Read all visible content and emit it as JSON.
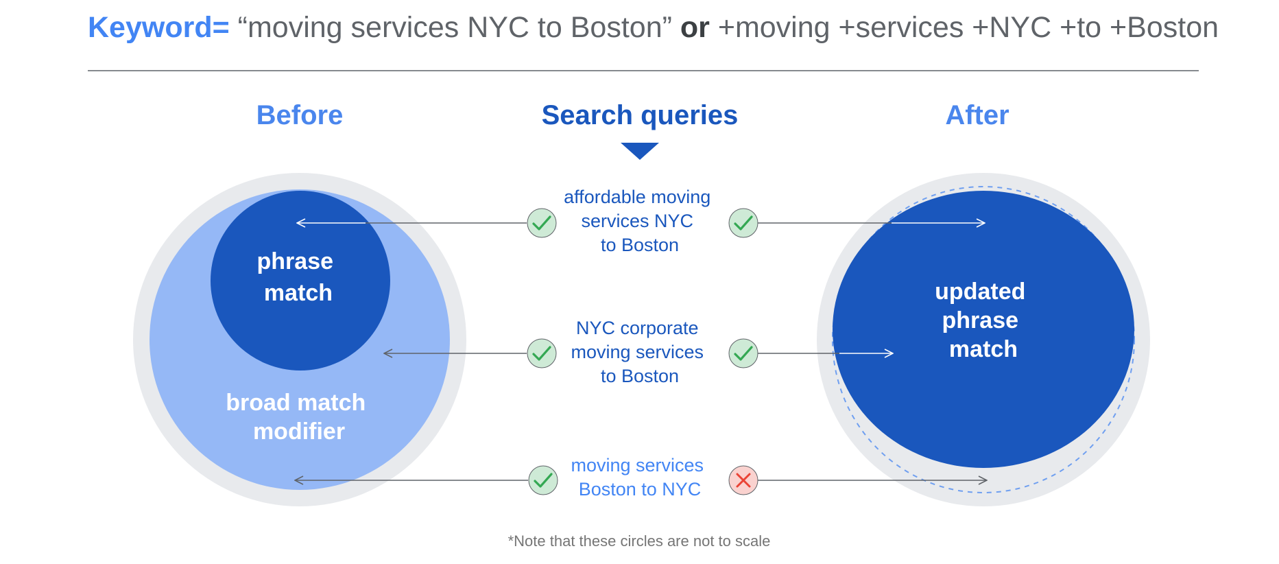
{
  "header": {
    "keyword_label": "Keyword=",
    "keyword_phrase": " “moving services NYC to Boston” ",
    "or_word": "or",
    "modifier_phrase": " +moving +services +NYC +to +Boston"
  },
  "sections": {
    "before": "Before",
    "middle": "Search queries",
    "after": "After"
  },
  "before_diagram": {
    "outer_label": [
      "broad match",
      "modifier"
    ],
    "inner_label": [
      "phrase",
      "match"
    ]
  },
  "after_diagram": {
    "label": [
      "updated",
      "phrase",
      "match"
    ]
  },
  "queries": [
    {
      "lines": [
        "affordable moving",
        "services NYC",
        "to Boston"
      ],
      "before": "match",
      "after": "match",
      "text_color": "#1a57bd"
    },
    {
      "lines": [
        "NYC corporate",
        "moving services",
        "to Boston"
      ],
      "before": "match",
      "after": "match",
      "text_color": "#1a57bd"
    },
    {
      "lines": [
        "moving services",
        "Boston to NYC"
      ],
      "before": "match",
      "after": "no-match",
      "text_color": "#4285f4"
    }
  ],
  "footnote": "*Note that these circles are not to scale",
  "colors": {
    "keyword_blue": "#4285f4",
    "header_gray": "#5f6368",
    "light_blue": "#95b8f6",
    "dark_blue": "#1a57bd",
    "outer_gray": "#e8eaed",
    "check_green": "#34a853",
    "check_bg": "#ceead6",
    "cross_red": "#ea4335",
    "cross_bg": "#fad2cf"
  }
}
